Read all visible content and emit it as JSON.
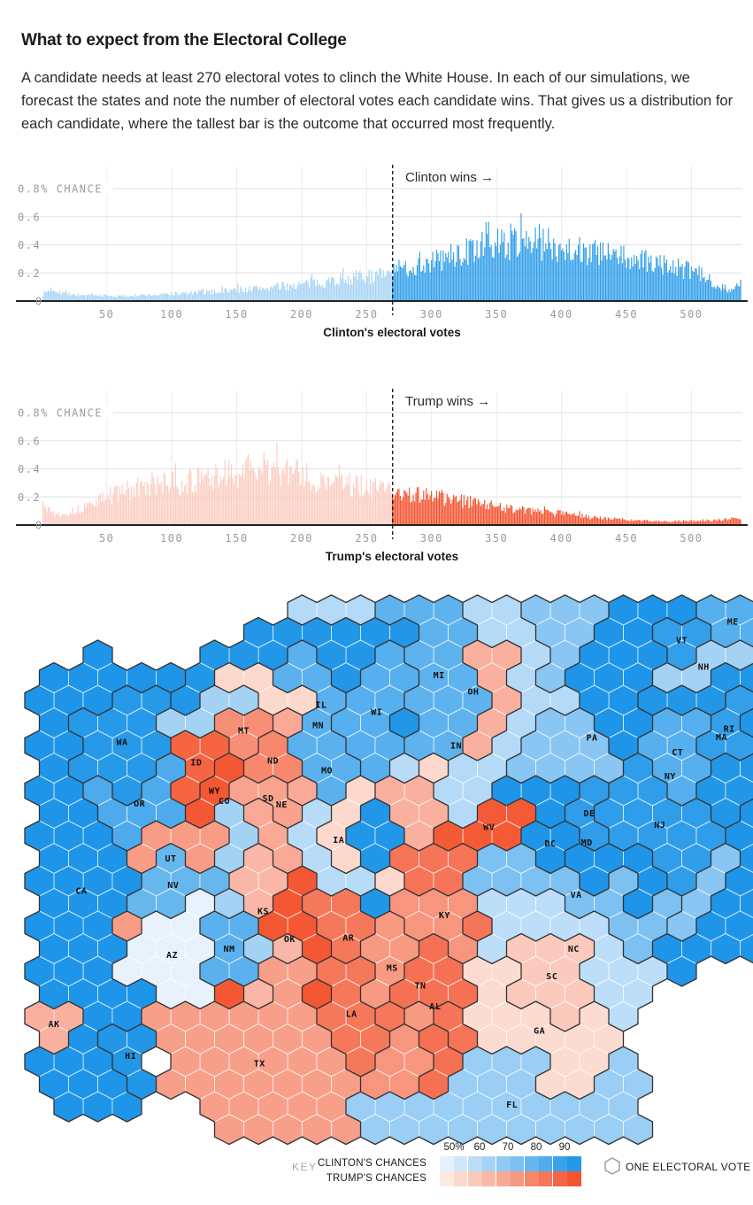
{
  "header": {
    "title": "What to expect from the Electoral College",
    "intro": "A candidate needs at least 270 electoral votes to clinch the White House. In each of our simulations, we forecast the states and note the number of electoral votes each candidate wins. That gives us a distribution for each candidate, where the tallest bar is the outcome that occurred most frequently."
  },
  "chart_data": [
    {
      "type": "bar",
      "name": "clinton-electoral-votes-histogram",
      "xlabel": "Clinton's electoral votes",
      "annotation": "Clinton wins →",
      "y_axis_top_label": "0.8% CHANCE",
      "y_ticks": [
        "0",
        "0.2",
        "0.4",
        "0.6",
        "0.8% CHANCE"
      ],
      "ylim": [
        0,
        0.8
      ],
      "x_ticks": [
        50,
        100,
        150,
        200,
        250,
        300,
        350,
        400,
        450,
        500
      ],
      "x_max": 538,
      "threshold": 270,
      "colors": {
        "below": "#A6D3F4",
        "above": "#2E9EE9"
      },
      "seed": 7,
      "noise": [
        0.68,
        0.62
      ],
      "envelope": [
        [
          1,
          0.05
        ],
        [
          8,
          0.09
        ],
        [
          15,
          0.06
        ],
        [
          30,
          0.04
        ],
        [
          60,
          0.035
        ],
        [
          90,
          0.045
        ],
        [
          120,
          0.06
        ],
        [
          150,
          0.08
        ],
        [
          180,
          0.1
        ],
        [
          210,
          0.13
        ],
        [
          240,
          0.17
        ],
        [
          268,
          0.19
        ],
        [
          272,
          0.22
        ],
        [
          300,
          0.28
        ],
        [
          330,
          0.36
        ],
        [
          355,
          0.42
        ],
        [
          375,
          0.44
        ],
        [
          395,
          0.4
        ],
        [
          420,
          0.36
        ],
        [
          450,
          0.3
        ],
        [
          480,
          0.26
        ],
        [
          505,
          0.2
        ],
        [
          520,
          0.12
        ],
        [
          532,
          0.07
        ],
        [
          538,
          0.14
        ]
      ]
    },
    {
      "type": "bar",
      "name": "trump-electoral-votes-histogram",
      "xlabel": "Trump's electoral votes",
      "annotation": "Trump wins →",
      "y_axis_top_label": "0.8% CHANCE",
      "y_ticks": [
        "0",
        "0.2",
        "0.4",
        "0.6",
        "0.8% CHANCE"
      ],
      "ylim": [
        0,
        0.8
      ],
      "x_ticks": [
        50,
        100,
        150,
        200,
        250,
        300,
        350,
        400,
        450,
        500
      ],
      "x_max": 538,
      "threshold": 270,
      "colors": {
        "below": "#FBCDC1",
        "above": "#F4502B"
      },
      "seed": 13,
      "noise": [
        0.68,
        0.62
      ],
      "envelope": [
        [
          1,
          0.16
        ],
        [
          10,
          0.08
        ],
        [
          25,
          0.1
        ],
        [
          45,
          0.18
        ],
        [
          60,
          0.24
        ],
        [
          80,
          0.27
        ],
        [
          100,
          0.3
        ],
        [
          125,
          0.32
        ],
        [
          150,
          0.38
        ],
        [
          165,
          0.4
        ],
        [
          180,
          0.41
        ],
        [
          195,
          0.37
        ],
        [
          210,
          0.33
        ],
        [
          230,
          0.3
        ],
        [
          250,
          0.27
        ],
        [
          268,
          0.25
        ],
        [
          275,
          0.23
        ],
        [
          290,
          0.22
        ],
        [
          310,
          0.19
        ],
        [
          330,
          0.16
        ],
        [
          355,
          0.13
        ],
        [
          380,
          0.1
        ],
        [
          400,
          0.08
        ],
        [
          420,
          0.06
        ],
        [
          440,
          0.045
        ],
        [
          460,
          0.03
        ],
        [
          480,
          0.025
        ],
        [
          500,
          0.03
        ],
        [
          520,
          0.035
        ],
        [
          538,
          0.05
        ]
      ]
    },
    {
      "type": "hexmap",
      "name": "electoral-college-hexmap",
      "unit": "ONE ELECTORAL VOTE",
      "scale": {
        "min": 50,
        "max": 99,
        "tick_labels": [
          "50%",
          "60",
          "70",
          "80",
          "90"
        ],
        "blue_range": [
          "#F0F6FD",
          "#1E95E8"
        ],
        "red_range": [
          "#FDF2ED",
          "#F4502B"
        ]
      },
      "states": [
        {
          "abbr": "WA",
          "ev": 12,
          "leader": "D",
          "chance": 97,
          "seed": [
            3,
            7
          ]
        },
        {
          "abbr": "OR",
          "ev": 7,
          "leader": "D",
          "chance": 88,
          "seed": [
            4,
            8
          ]
        },
        {
          "abbr": "CA",
          "ev": 55,
          "leader": "D",
          "chance": 99,
          "seed": [
            2,
            12
          ]
        },
        {
          "abbr": "NV",
          "ev": 6,
          "leader": "D",
          "chance": 82,
          "seed": [
            5,
            12
          ]
        },
        {
          "abbr": "ID",
          "ev": 4,
          "leader": "R",
          "chance": 93,
          "seed": [
            5,
            7
          ]
        },
        {
          "abbr": "UT",
          "ev": 6,
          "leader": "R",
          "chance": 76,
          "seed": [
            5,
            11
          ]
        },
        {
          "abbr": "AZ",
          "ev": 11,
          "leader": "D",
          "chance": 52,
          "seed": [
            5,
            14
          ]
        },
        {
          "abbr": "MT",
          "ev": 3,
          "leader": "R",
          "chance": 80,
          "seed": [
            7,
            6
          ]
        },
        {
          "abbr": "WY",
          "ev": 3,
          "leader": "R",
          "chance": 97,
          "seed": [
            6,
            8
          ]
        },
        {
          "abbr": "NM",
          "ev": 5,
          "leader": "D",
          "chance": 85,
          "seed": [
            6,
            15
          ]
        },
        {
          "abbr": "CO",
          "ev": 9,
          "leader": "D",
          "chance": 68,
          "seed": [
            7,
            10
          ]
        },
        {
          "abbr": "ND",
          "ev": 3,
          "leader": "R",
          "chance": 82,
          "seed": [
            7,
            7
          ]
        },
        {
          "abbr": "SD",
          "ev": 3,
          "leader": "R",
          "chance": 74,
          "seed": [
            7,
            8
          ]
        },
        {
          "abbr": "NE",
          "ev": 5,
          "leader": "R",
          "chance": 72,
          "seed": [
            7,
            9
          ]
        },
        {
          "abbr": "KS",
          "ev": 6,
          "leader": "R",
          "chance": 68,
          "seed": [
            7,
            11
          ]
        },
        {
          "abbr": "OK",
          "ev": 7,
          "leader": "R",
          "chance": 97,
          "seed": [
            8,
            13
          ]
        },
        {
          "abbr": "TX",
          "ev": 38,
          "leader": "R",
          "chance": 75,
          "seed": [
            8,
            17
          ]
        },
        {
          "abbr": "MN",
          "ev": 10,
          "leader": "D",
          "chance": 85,
          "seed": [
            9,
            7
          ]
        },
        {
          "abbr": "IA",
          "ev": 6,
          "leader": "D",
          "chance": 63,
          "seed": [
            9,
            10
          ]
        },
        {
          "abbr": "MO",
          "ev": 10,
          "leader": "R",
          "chance": 58,
          "seed": [
            10,
            10
          ]
        },
        {
          "abbr": "AR",
          "ev": 6,
          "leader": "R",
          "chance": 87,
          "seed": [
            10,
            14
          ]
        },
        {
          "abbr": "LA",
          "ev": 8,
          "leader": "R",
          "chance": 87,
          "seed": [
            10,
            17
          ]
        },
        {
          "abbr": "WI",
          "ev": 10,
          "leader": "D",
          "chance": 86,
          "seed": [
            11,
            6
          ]
        },
        {
          "abbr": "IL",
          "ev": 20,
          "leader": "D",
          "chance": 98,
          "seed": [
            11,
            10
          ]
        },
        {
          "abbr": "MI",
          "ev": 16,
          "leader": "D",
          "chance": 84,
          "seed": [
            13,
            5
          ]
        },
        {
          "abbr": "IN",
          "ev": 11,
          "leader": "R",
          "chance": 70,
          "seed": [
            12,
            9
          ]
        },
        {
          "abbr": "OH",
          "ev": 18,
          "leader": "D",
          "chance": 64,
          "seed": [
            15,
            8
          ]
        },
        {
          "abbr": "KY",
          "ev": 8,
          "leader": "R",
          "chance": 88,
          "seed": [
            13,
            12
          ]
        },
        {
          "abbr": "TN",
          "ev": 11,
          "leader": "R",
          "chance": 78,
          "seed": [
            13,
            14
          ]
        },
        {
          "abbr": "MS",
          "ev": 6,
          "leader": "R",
          "chance": 77,
          "seed": [
            12,
            15
          ]
        },
        {
          "abbr": "AL",
          "ev": 9,
          "leader": "R",
          "chance": 89,
          "seed": [
            13,
            16
          ]
        },
        {
          "abbr": "GA",
          "ev": 16,
          "leader": "R",
          "chance": 57,
          "seed": [
            15,
            17
          ]
        },
        {
          "abbr": "SC",
          "ev": 9,
          "leader": "R",
          "chance": 62,
          "seed": [
            17,
            16
          ]
        },
        {
          "abbr": "NC",
          "ev": 15,
          "leader": "D",
          "chance": 62,
          "seed": [
            16,
            14
          ]
        },
        {
          "abbr": "VA",
          "ev": 13,
          "leader": "D",
          "chance": 77,
          "seed": [
            16,
            12
          ]
        },
        {
          "abbr": "WV",
          "ev": 5,
          "leader": "R",
          "chance": 96,
          "seed": [
            16,
            10
          ]
        },
        {
          "abbr": "FL",
          "ev": 29,
          "leader": "D",
          "chance": 70,
          "seed": [
            15,
            21
          ]
        },
        {
          "abbr": "PA",
          "ev": 20,
          "leader": "D",
          "chance": 74,
          "seed": [
            17,
            7
          ]
        },
        {
          "abbr": "NY",
          "ev": 29,
          "leader": "D",
          "chance": 99,
          "seed": [
            20,
            4
          ]
        },
        {
          "abbr": "NJ",
          "ev": 14,
          "leader": "D",
          "chance": 95,
          "seed": [
            20,
            9
          ]
        },
        {
          "abbr": "MD",
          "ev": 10,
          "leader": "D",
          "chance": 99,
          "seed": [
            17,
            9
          ]
        },
        {
          "abbr": "DE",
          "ev": 3,
          "leader": "D",
          "chance": 95,
          "seed": [
            18,
            9
          ]
        },
        {
          "abbr": "DC",
          "ev": 3,
          "leader": "D",
          "chance": 99,
          "seed": [
            17,
            11
          ]
        },
        {
          "abbr": "CT",
          "ev": 7,
          "leader": "D",
          "chance": 86,
          "seed": [
            22,
            6
          ]
        },
        {
          "abbr": "RI",
          "ev": 4,
          "leader": "D",
          "chance": 94,
          "seed": [
            23,
            5
          ]
        },
        {
          "abbr": "MA",
          "ev": 11,
          "leader": "D",
          "chance": 98,
          "seed": [
            23,
            4
          ]
        },
        {
          "abbr": "VT",
          "ev": 3,
          "leader": "D",
          "chance": 94,
          "seed": [
            22,
            2
          ]
        },
        {
          "abbr": "NH",
          "ev": 4,
          "leader": "D",
          "chance": 68,
          "seed": [
            22,
            3
          ]
        },
        {
          "abbr": "ME",
          "ev": 4,
          "leader": "D",
          "chance": 86,
          "seed": [
            23,
            1
          ]
        },
        {
          "abbr": "AK",
          "ev": 3,
          "leader": "R",
          "chance": 70,
          "seed": [
            0,
            19
          ]
        },
        {
          "abbr": "HI",
          "ev": 4,
          "leader": "D",
          "chance": 98,
          "seed": [
            3,
            20
          ]
        }
      ]
    }
  ],
  "legend": {
    "key_label": "KEY",
    "rows": [
      "CLINTON'S CHANCES",
      "TRUMP'S CHANCES"
    ],
    "unit_label": "ONE ELECTORAL VOTE"
  }
}
